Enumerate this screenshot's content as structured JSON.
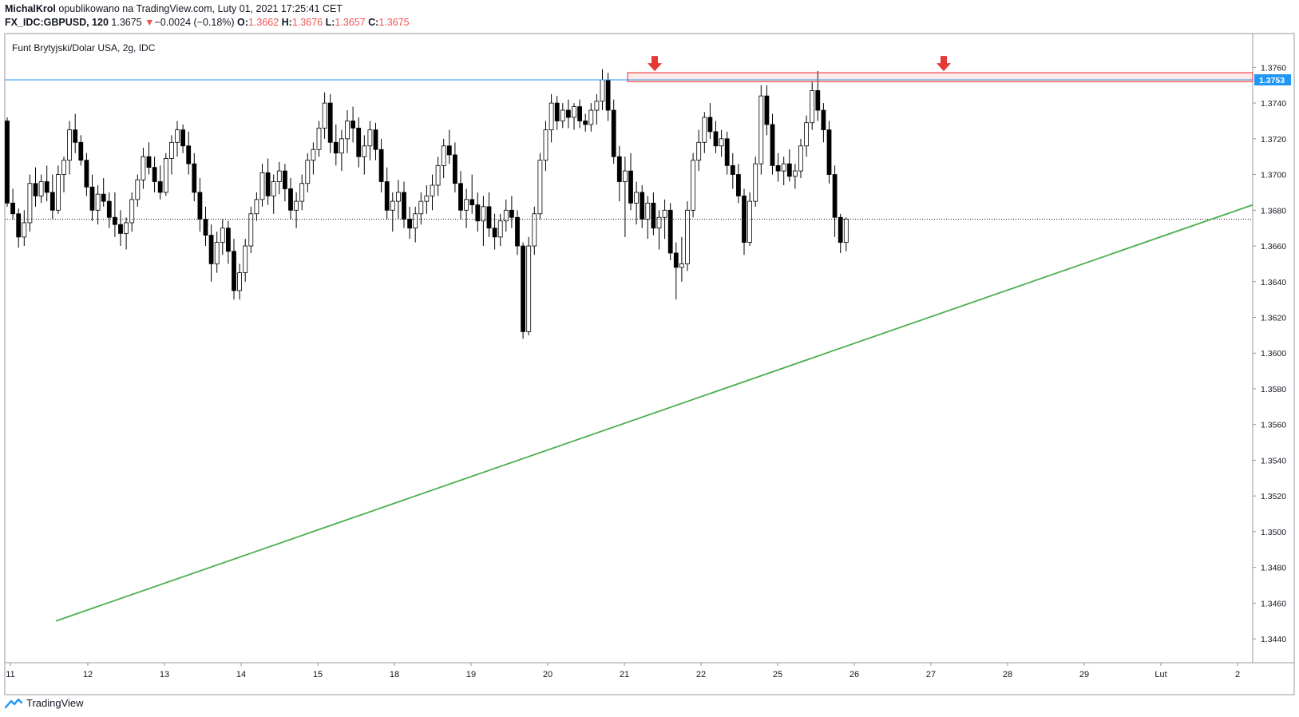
{
  "header": {
    "author": "MichalKrol",
    "published": "opublikowano na TradingView.com, Luty 01, 2021 17:25:41 CET",
    "symbol": "FX_IDC:GBPUSD, 120",
    "last": "1.3675",
    "change": "−0.0024 (−0.18%)",
    "o_label": "O:",
    "o_value": "1.3662",
    "h_label": "H:",
    "h_value": "1.3676",
    "l_label": "L:",
    "l_value": "1.3657",
    "c_label": "C:",
    "c_value": "1.3675"
  },
  "chart_title": "Funt Brytyjski/Dolar USA, 2g, IDC",
  "footer": {
    "brand": "TradingView",
    "logo_icon": "tradingview-logo-icon"
  },
  "colors": {
    "up_body": "#ffffff",
    "down_body": "#000000",
    "wick": "#000000",
    "trendline": "#4caf50",
    "resistance_line": "#2196f3",
    "zone": "#ef5350",
    "arrow": "#e53935",
    "price_badge": "#2196f3",
    "change_down": "#ef5350"
  },
  "chart_data": {
    "type": "candlestick",
    "ylim": [
      1.3432,
      1.377
    ],
    "ticks": [
      "1.3760",
      "1.3740",
      "1.3720",
      "1.3700",
      "1.3680",
      "1.3660",
      "1.3640",
      "1.3620",
      "1.3600",
      "1.3580",
      "1.3560",
      "1.3540",
      "1.3520",
      "1.3500",
      "1.3480",
      "1.3460",
      "1.3440"
    ],
    "x_labels": [
      "11",
      "12",
      "13",
      "14",
      "15",
      "18",
      "19",
      "20",
      "21",
      "22",
      "25",
      "26",
      "27",
      "28",
      "29",
      "Lut",
      "2"
    ],
    "current_price": 1.3675,
    "resistance_level": 1.3753,
    "resistance_label": "1.3753",
    "resistance_zone": [
      1.3752,
      1.3757
    ],
    "trendline": [
      {
        "date": "12",
        "price": 1.345
      },
      {
        "date": "2",
        "price": 1.3683
      }
    ],
    "arrows": [
      "21",
      "27"
    ],
    "candles": [
      [
        1.373,
        1.3732,
        1.3682,
        1.3684
      ],
      [
        1.3684,
        1.3692,
        1.3675,
        1.3678
      ],
      [
        1.3678,
        1.3681,
        1.3659,
        1.3665
      ],
      [
        1.3665,
        1.368,
        1.366,
        1.3673
      ],
      [
        1.3673,
        1.37,
        1.3668,
        1.3695
      ],
      [
        1.3695,
        1.3704,
        1.3682,
        1.3688
      ],
      [
        1.3688,
        1.37,
        1.3684,
        1.3696
      ],
      [
        1.3696,
        1.3705,
        1.3685,
        1.369
      ],
      [
        1.369,
        1.37,
        1.3675,
        1.368
      ],
      [
        1.368,
        1.3705,
        1.3678,
        1.37
      ],
      [
        1.37,
        1.371,
        1.369,
        1.3708
      ],
      [
        1.3708,
        1.373,
        1.37,
        1.3725
      ],
      [
        1.3725,
        1.3734,
        1.3712,
        1.3718
      ],
      [
        1.3718,
        1.3722,
        1.3705,
        1.3708
      ],
      [
        1.3708,
        1.3712,
        1.3688,
        1.3693
      ],
      [
        1.3693,
        1.37,
        1.3674,
        1.368
      ],
      [
        1.368,
        1.3694,
        1.3672,
        1.3689
      ],
      [
        1.3689,
        1.3698,
        1.3682,
        1.3685
      ],
      [
        1.3685,
        1.369,
        1.367,
        1.3676
      ],
      [
        1.3676,
        1.369,
        1.3665,
        1.3672
      ],
      [
        1.3672,
        1.368,
        1.366,
        1.3667
      ],
      [
        1.3667,
        1.3676,
        1.3658,
        1.3673
      ],
      [
        1.3673,
        1.369,
        1.3668,
        1.3686
      ],
      [
        1.3686,
        1.37,
        1.3682,
        1.3697
      ],
      [
        1.3697,
        1.3715,
        1.3692,
        1.371
      ],
      [
        1.371,
        1.3718,
        1.37,
        1.3704
      ],
      [
        1.3704,
        1.371,
        1.369,
        1.3696
      ],
      [
        1.3696,
        1.3705,
        1.3686,
        1.369
      ],
      [
        1.369,
        1.3712,
        1.3688,
        1.3709
      ],
      [
        1.3709,
        1.3722,
        1.37,
        1.3718
      ],
      [
        1.3718,
        1.373,
        1.371,
        1.3725
      ],
      [
        1.3725,
        1.3728,
        1.3712,
        1.3716
      ],
      [
        1.3716,
        1.3724,
        1.37,
        1.3706
      ],
      [
        1.3706,
        1.3712,
        1.3685,
        1.369
      ],
      [
        1.369,
        1.3698,
        1.3668,
        1.3675
      ],
      [
        1.3675,
        1.3682,
        1.366,
        1.3666
      ],
      [
        1.3666,
        1.3672,
        1.364,
        1.365
      ],
      [
        1.365,
        1.3668,
        1.3645,
        1.3662
      ],
      [
        1.3662,
        1.3675,
        1.3655,
        1.367
      ],
      [
        1.367,
        1.3674,
        1.365,
        1.3657
      ],
      [
        1.3657,
        1.3664,
        1.363,
        1.3635
      ],
      [
        1.3635,
        1.365,
        1.363,
        1.3645
      ],
      [
        1.3645,
        1.3664,
        1.364,
        1.366
      ],
      [
        1.366,
        1.3682,
        1.3656,
        1.3678
      ],
      [
        1.3678,
        1.369,
        1.3674,
        1.3686
      ],
      [
        1.3686,
        1.3706,
        1.3682,
        1.3701
      ],
      [
        1.3701,
        1.3709,
        1.3683,
        1.3688
      ],
      [
        1.3688,
        1.37,
        1.3678,
        1.3696
      ],
      [
        1.3696,
        1.3707,
        1.3689,
        1.3702
      ],
      [
        1.3702,
        1.3706,
        1.3685,
        1.3692
      ],
      [
        1.3692,
        1.3698,
        1.3675,
        1.368
      ],
      [
        1.368,
        1.369,
        1.367,
        1.3685
      ],
      [
        1.3685,
        1.37,
        1.368,
        1.3695
      ],
      [
        1.3695,
        1.3712,
        1.369,
        1.3708
      ],
      [
        1.3708,
        1.3718,
        1.37,
        1.3714
      ],
      [
        1.3714,
        1.373,
        1.371,
        1.3726
      ],
      [
        1.3726,
        1.3746,
        1.372,
        1.374
      ],
      [
        1.374,
        1.3745,
        1.3712,
        1.3718
      ],
      [
        1.3718,
        1.3728,
        1.3705,
        1.3712
      ],
      [
        1.3712,
        1.3725,
        1.3702,
        1.372
      ],
      [
        1.372,
        1.3736,
        1.3712,
        1.373
      ],
      [
        1.373,
        1.3738,
        1.3718,
        1.3726
      ],
      [
        1.3726,
        1.3732,
        1.3704,
        1.371
      ],
      [
        1.371,
        1.3722,
        1.37,
        1.3716
      ],
      [
        1.3716,
        1.373,
        1.3708,
        1.3725
      ],
      [
        1.3725,
        1.3729,
        1.3708,
        1.3714
      ],
      [
        1.3714,
        1.372,
        1.369,
        1.3696
      ],
      [
        1.3696,
        1.3704,
        1.3675,
        1.368
      ],
      [
        1.368,
        1.369,
        1.3668,
        1.3685
      ],
      [
        1.3685,
        1.3697,
        1.3675,
        1.369
      ],
      [
        1.369,
        1.3696,
        1.367,
        1.3675
      ],
      [
        1.3675,
        1.3682,
        1.3664,
        1.367
      ],
      [
        1.367,
        1.3682,
        1.3662,
        1.3678
      ],
      [
        1.3678,
        1.369,
        1.3672,
        1.3685
      ],
      [
        1.3685,
        1.3694,
        1.3678,
        1.3688
      ],
      [
        1.3688,
        1.37,
        1.368,
        1.3694
      ],
      [
        1.3694,
        1.371,
        1.3688,
        1.3705
      ],
      [
        1.3705,
        1.372,
        1.3698,
        1.3716
      ],
      [
        1.3716,
        1.3725,
        1.3706,
        1.3711
      ],
      [
        1.3711,
        1.3718,
        1.369,
        1.3695
      ],
      [
        1.3695,
        1.3702,
        1.3675,
        1.368
      ],
      [
        1.368,
        1.3692,
        1.367,
        1.3686
      ],
      [
        1.3686,
        1.37,
        1.3678,
        1.3683
      ],
      [
        1.3683,
        1.369,
        1.3668,
        1.3674
      ],
      [
        1.3674,
        1.3688,
        1.366,
        1.3682
      ],
      [
        1.3682,
        1.369,
        1.3665,
        1.367
      ],
      [
        1.367,
        1.3678,
        1.3658,
        1.3665
      ],
      [
        1.3665,
        1.3678,
        1.366,
        1.3674
      ],
      [
        1.3674,
        1.3686,
        1.3668,
        1.368
      ],
      [
        1.368,
        1.3688,
        1.367,
        1.3676
      ],
      [
        1.3676,
        1.368,
        1.3655,
        1.366
      ],
      [
        1.366,
        1.3662,
        1.3608,
        1.3612
      ],
      [
        1.3612,
        1.3665,
        1.361,
        1.366
      ],
      [
        1.366,
        1.3682,
        1.3655,
        1.3678
      ],
      [
        1.3678,
        1.3712,
        1.3675,
        1.3708
      ],
      [
        1.3708,
        1.373,
        1.3702,
        1.3725
      ],
      [
        1.3725,
        1.3745,
        1.3718,
        1.374
      ],
      [
        1.374,
        1.3744,
        1.3725,
        1.373
      ],
      [
        1.373,
        1.374,
        1.3726,
        1.3736
      ],
      [
        1.3736,
        1.3742,
        1.3726,
        1.3732
      ],
      [
        1.3732,
        1.374,
        1.3725,
        1.3738
      ],
      [
        1.3738,
        1.3742,
        1.3726,
        1.373
      ],
      [
        1.373,
        1.3734,
        1.3724,
        1.3728
      ],
      [
        1.3728,
        1.374,
        1.3724,
        1.3736
      ],
      [
        1.3736,
        1.3745,
        1.3728,
        1.3741
      ],
      [
        1.3741,
        1.3759,
        1.3736,
        1.3753
      ],
      [
        1.3753,
        1.3757,
        1.373,
        1.3736
      ],
      [
        1.3736,
        1.3742,
        1.3706,
        1.371
      ],
      [
        1.371,
        1.3716,
        1.3685,
        1.3696
      ],
      [
        1.3696,
        1.371,
        1.3665,
        1.3702
      ],
      [
        1.3702,
        1.3712,
        1.368,
        1.3684
      ],
      [
        1.3684,
        1.3696,
        1.3672,
        1.369
      ],
      [
        1.369,
        1.3694,
        1.367,
        1.3675
      ],
      [
        1.3675,
        1.3688,
        1.3664,
        1.3684
      ],
      [
        1.3684,
        1.369,
        1.3666,
        1.367
      ],
      [
        1.367,
        1.368,
        1.3658,
        1.3676
      ],
      [
        1.3676,
        1.3686,
        1.3664,
        1.368
      ],
      [
        1.368,
        1.3684,
        1.3652,
        1.3656
      ],
      [
        1.3656,
        1.3662,
        1.363,
        1.3648
      ],
      [
        1.3648,
        1.3665,
        1.364,
        1.365
      ],
      [
        1.365,
        1.3685,
        1.3646,
        1.368
      ],
      [
        1.368,
        1.3712,
        1.3676,
        1.3708
      ],
      [
        1.3708,
        1.3725,
        1.3702,
        1.3718
      ],
      [
        1.3718,
        1.3735,
        1.3712,
        1.3732
      ],
      [
        1.3732,
        1.374,
        1.372,
        1.3724
      ],
      [
        1.3724,
        1.373,
        1.3712,
        1.3716
      ],
      [
        1.3716,
        1.3725,
        1.371,
        1.372
      ],
      [
        1.372,
        1.3724,
        1.37,
        1.3705
      ],
      [
        1.3705,
        1.3712,
        1.3692,
        1.37
      ],
      [
        1.37,
        1.3706,
        1.3684,
        1.3688
      ],
      [
        1.3688,
        1.3692,
        1.3655,
        1.3662
      ],
      [
        1.3662,
        1.369,
        1.366,
        1.3685
      ],
      [
        1.3685,
        1.371,
        1.3682,
        1.3706
      ],
      [
        1.3706,
        1.375,
        1.37,
        1.3744
      ],
      [
        1.3744,
        1.375,
        1.3722,
        1.3728
      ],
      [
        1.3728,
        1.3734,
        1.37,
        1.3705
      ],
      [
        1.3705,
        1.3712,
        1.3696,
        1.3702
      ],
      [
        1.3702,
        1.371,
        1.3694,
        1.3706
      ],
      [
        1.3706,
        1.3714,
        1.3696,
        1.3699
      ],
      [
        1.3699,
        1.3706,
        1.3692,
        1.3702
      ],
      [
        1.3702,
        1.372,
        1.3698,
        1.3716
      ],
      [
        1.3716,
        1.3733,
        1.371,
        1.3729
      ],
      [
        1.3729,
        1.3752,
        1.3725,
        1.3747
      ],
      [
        1.3747,
        1.3758,
        1.373,
        1.3736
      ],
      [
        1.3736,
        1.374,
        1.3718,
        1.3725
      ],
      [
        1.3725,
        1.373,
        1.3695,
        1.37
      ],
      [
        1.37,
        1.3705,
        1.3665,
        1.3676
      ],
      [
        1.3676,
        1.3678,
        1.3656,
        1.3662
      ],
      [
        1.3662,
        1.3676,
        1.3657,
        1.3675
      ]
    ]
  }
}
